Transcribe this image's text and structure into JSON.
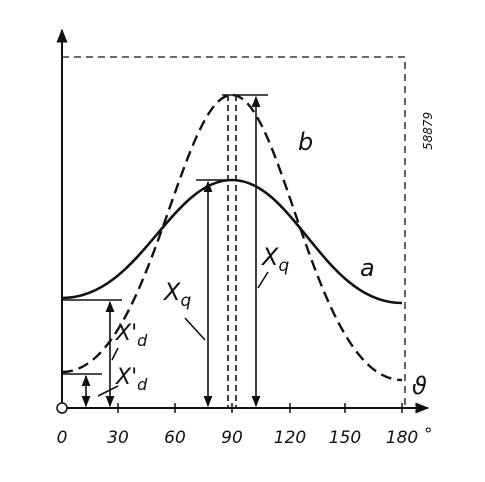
{
  "axis": {
    "x_ticks": [
      "0",
      "30",
      "60",
      "90",
      "120",
      "150",
      "180"
    ],
    "degree": "°",
    "x_symbol": "ϑ"
  },
  "curves": {
    "a": "a",
    "b": "b"
  },
  "labels": {
    "xq_right": {
      "main": "X",
      "sub": "q"
    },
    "xq_left": {
      "main": "X",
      "sub": "q"
    },
    "xd_upper": {
      "main": "X'",
      "sub": "d"
    },
    "xd_lower": {
      "main": "X'",
      "sub": "d"
    }
  },
  "figure_number": "58879"
}
